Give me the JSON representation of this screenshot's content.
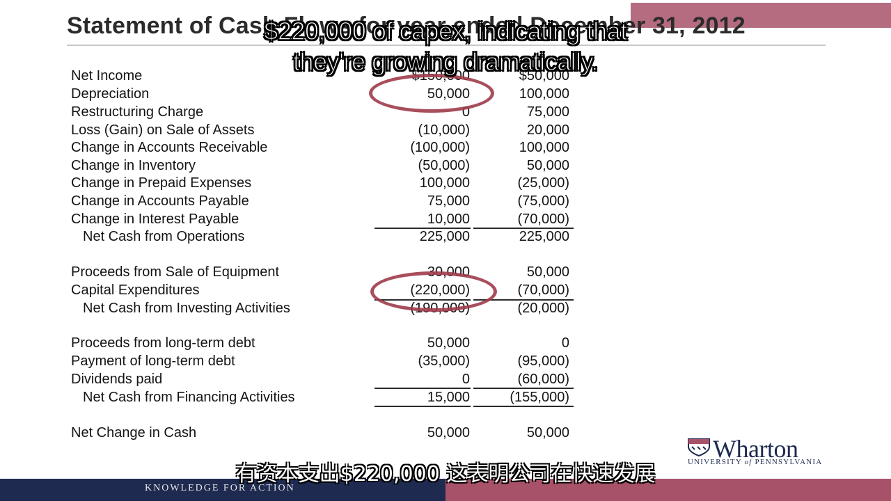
{
  "slide": {
    "title": "Statement of Cash Flows for year ended December 31, 2012",
    "rows": [
      {
        "label": "Net Income",
        "v1": "$150,000",
        "v2": "$50,000"
      },
      {
        "label": "Depreciation",
        "v1": "50,000",
        "v2": "100,000"
      },
      {
        "label": "Restructuring Charge",
        "v1": "0",
        "v2": "75,000"
      },
      {
        "label": "Loss (Gain) on Sale of Assets",
        "v1": "(10,000)",
        "v2": "20,000"
      },
      {
        "label": "Change in Accounts Receivable",
        "v1": "(100,000)",
        "v2": "100,000"
      },
      {
        "label": "Change in Inventory",
        "v1": "(50,000)",
        "v2": "50,000"
      },
      {
        "label": "Change in Prepaid Expenses",
        "v1": "100,000",
        "v2": "(25,000)"
      },
      {
        "label": "Change in Accounts Payable",
        "v1": "75,000",
        "v2": "(75,000)"
      },
      {
        "label": "Change in Interest Payable",
        "v1": "10,000",
        "v2": "(70,000)"
      },
      {
        "label": "Net Cash from Operations",
        "v1": "225,000",
        "v2": "225,000"
      },
      {
        "label": "Proceeds from Sale of Equipment",
        "v1": "30,000",
        "v2": "50,000"
      },
      {
        "label": "Capital Expenditures",
        "v1": "(220,000)",
        "v2": "(70,000)"
      },
      {
        "label": "Net Cash from Investing Activities",
        "v1": "(190,000)",
        "v2": "(20,000)"
      },
      {
        "label": "Proceeds from long-term debt",
        "v1": "50,000",
        "v2": "0"
      },
      {
        "label": "Payment of long-term debt",
        "v1": "(35,000)",
        "v2": "(95,000)"
      },
      {
        "label": "Dividends paid",
        "v1": "0",
        "v2": "(60,000)"
      },
      {
        "label": "Net Cash from Financing Activities",
        "v1": "15,000",
        "v2": "(155,000)"
      },
      {
        "label": "Net Change in Cash",
        "v1": "50,000",
        "v2": "50,000"
      }
    ]
  },
  "subtitles": {
    "en_line1": "$220,000 of capex, indicating that",
    "en_line2": "they're growing dramatically.",
    "zh": "有资本支出$220,000 这表明公司在快速发展"
  },
  "footer": {
    "tagline": "KNOWLEDGE FOR ACTION"
  },
  "logo": {
    "name": "Wharton",
    "sub_prefix": "UNIVERSITY ",
    "sub_of": "of",
    "sub_suffix": " PENNSYLVANIA"
  },
  "colors": {
    "accent": "#a8526a",
    "navy": "#1e2a4f",
    "circle": "#9e3b4a"
  }
}
